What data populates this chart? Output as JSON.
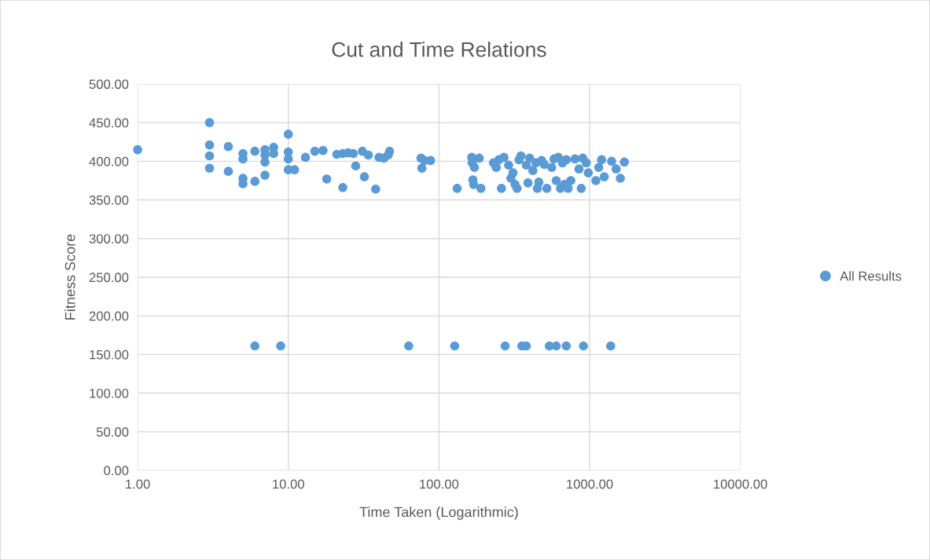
{
  "chart_data": {
    "type": "scatter",
    "title": "Cut and Time Relations",
    "xlabel": "Time Taken (Logarithmic)",
    "ylabel": "Fitness Score",
    "log": "x",
    "grid": true,
    "legend": "right",
    "marker": "circle",
    "xlim": [
      1,
      10000
    ],
    "xticks": [
      {
        "value": 1,
        "label": "1.00"
      },
      {
        "value": 10,
        "label": "10.00"
      },
      {
        "value": 100,
        "label": "100.00"
      },
      {
        "value": 1000,
        "label": "1000.00"
      },
      {
        "value": 10000,
        "label": "10000.00"
      }
    ],
    "ylim": [
      0,
      500
    ],
    "yticks": [
      {
        "value": 0,
        "label": "0.00"
      },
      {
        "value": 50,
        "label": "50.00"
      },
      {
        "value": 100,
        "label": "100.00"
      },
      {
        "value": 150,
        "label": "150.00"
      },
      {
        "value": 200,
        "label": "200.00"
      },
      {
        "value": 250,
        "label": "250.00"
      },
      {
        "value": 300,
        "label": "300.00"
      },
      {
        "value": 350,
        "label": "350.00"
      },
      {
        "value": 400,
        "label": "400.00"
      },
      {
        "value": 450,
        "label": "450.00"
      },
      {
        "value": 500,
        "label": "500.00"
      }
    ],
    "series": [
      {
        "name": "All Results",
        "color": "#5b9bd5",
        "x": [
          1,
          3,
          3,
          3,
          3,
          4,
          4,
          5,
          5,
          5,
          5,
          6,
          6,
          7,
          7,
          7,
          7,
          8,
          8,
          10,
          10,
          10,
          10,
          11,
          13,
          15,
          17,
          18,
          21,
          23,
          23,
          25,
          27,
          28,
          31,
          32,
          34,
          38,
          40,
          43,
          46,
          47,
          76,
          77,
          80,
          88,
          132,
          165,
          166,
          168,
          170,
          172,
          185,
          190,
          230,
          240,
          250,
          260,
          270,
          290,
          300,
          310,
          320,
          330,
          340,
          350,
          380,
          390,
          400,
          420,
          440,
          450,
          460,
          480,
          500,
          520,
          560,
          580,
          600,
          620,
          640,
          660,
          680,
          700,
          720,
          750,
          800,
          850,
          880,
          900,
          950,
          980,
          1100,
          1150,
          1200,
          1250,
          1400,
          1500,
          1600,
          1700,
          6,
          8.9,
          63,
          127,
          275,
          355,
          380,
          540,
          600,
          700,
          910,
          1380
        ],
        "values": [
          415,
          450,
          421,
          407,
          391,
          419,
          387,
          410,
          403,
          378,
          371,
          413,
          374,
          415,
          408,
          399,
          382,
          418,
          410,
          435,
          412,
          403,
          389,
          389,
          405,
          413,
          414,
          377,
          409,
          410,
          366,
          411,
          410,
          394,
          413,
          380,
          408,
          364,
          405,
          404,
          408,
          413,
          404,
          391,
          401,
          401,
          365,
          405,
          398,
          376,
          370,
          392,
          404,
          365,
          398,
          392,
          402,
          365,
          405,
          395,
          378,
          385,
          370,
          365,
          402,
          407,
          395,
          372,
          404,
          388,
          398,
          365,
          373,
          401,
          396,
          365,
          392,
          403,
          375,
          405,
          365,
          398,
          370,
          402,
          365,
          375,
          403,
          390,
          365,
          404,
          398,
          385,
          375,
          392,
          402,
          380,
          400,
          390,
          378,
          399,
          161,
          161,
          161,
          161,
          161,
          161,
          161,
          161,
          161,
          161,
          161,
          161
        ]
      }
    ]
  }
}
